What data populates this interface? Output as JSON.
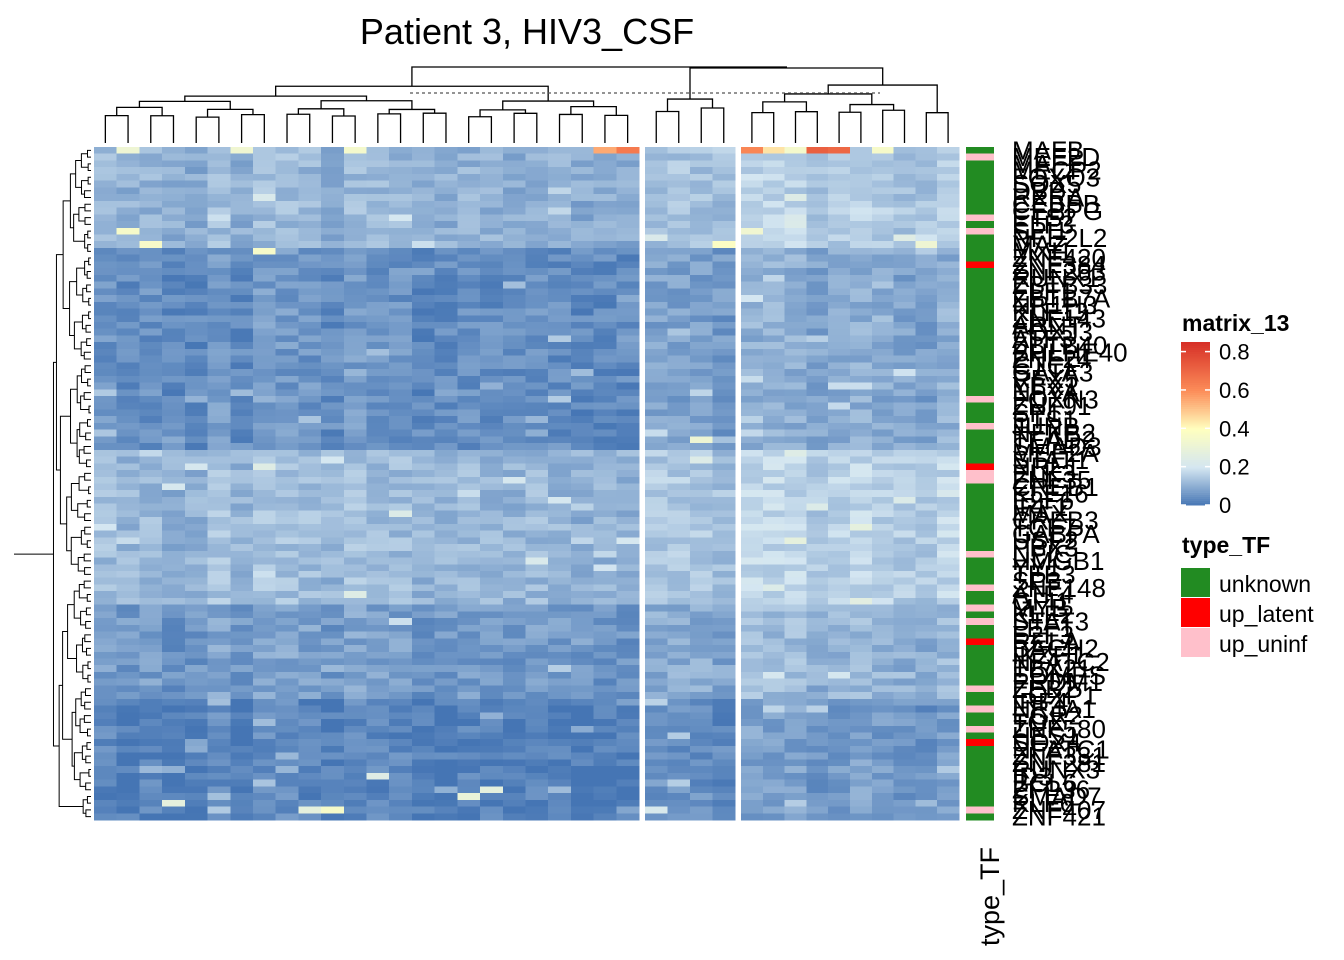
{
  "chart_data": {
    "type": "heatmap",
    "title": "Patient 3, HIV3_CSF",
    "column_splits": [
      24,
      4,
      10
    ],
    "n_rows": 100,
    "colorbar": {
      "title": "matrix_13",
      "ticks": [
        "0.8",
        "0.6",
        "0.4",
        "0.2",
        "0"
      ],
      "tick_values": [
        0.8,
        0.6,
        0.4,
        0.2,
        0
      ],
      "range": [
        0,
        0.85
      ],
      "stops": [
        {
          "v": 0.0,
          "c": "#4575b4"
        },
        {
          "v": 0.2,
          "c": "#d4e6f1"
        },
        {
          "v": 0.4,
          "c": "#ffffbf"
        },
        {
          "v": 0.6,
          "c": "#fc8d59"
        },
        {
          "v": 0.85,
          "c": "#d73027"
        }
      ]
    },
    "annotation": {
      "name": "type_TF",
      "legend_title": "type_TF",
      "categories": [
        {
          "label": "unknown",
          "color": "#228B22"
        },
        {
          "label": "up_latent",
          "color": "#FF0000"
        },
        {
          "label": "up_uninf",
          "color": "#FFC0CB"
        }
      ]
    },
    "row_labels": [
      "MAFB",
      "MEF2D",
      "MAFF",
      "MECP2",
      "FOXO3",
      "SOX5",
      "DBP",
      "RXRA",
      "CEBPB",
      "CEBPG",
      "ETS2",
      "ELF3",
      "SPI1",
      "NFE2L2",
      "MAZ",
      "MXI1",
      "ZNF420",
      "ZNF384",
      "ZNF263",
      "RUNX1",
      "ZBTB33",
      "ELF1",
      "ZBTB7A",
      "NR1H3",
      "KLF13",
      "ZNF143",
      "ARNT",
      "FOXJ3",
      "ATF3",
      "ZBTB40",
      "BHLHE40",
      "ZNF24",
      "CTCF",
      "GATA3",
      "RFX5",
      "YBX1",
      "NFYA",
      "FOXN3",
      "ZNF91",
      "SP1",
      "ETS1",
      "JUNB",
      "NFKB2",
      "TEAD2",
      "SMAD3",
      "MEF2A",
      "STAT1",
      "NRF1",
      "ELK3",
      "ZNF35",
      "CREB1",
      "KLF16",
      "E2F6",
      "IRF1",
      "MAX",
      "CREB3",
      "TCF7",
      "GABPA",
      "USF2",
      "PBX3",
      "NFIC",
      "HMGB1",
      "YY1",
      "TFE3",
      "SP3",
      "ZNF148",
      "ATF4",
      "GFI1",
      "MYB",
      "KLF2",
      "STAT3",
      "LEF1",
      "E2F3",
      "RELA",
      "BACH2",
      "IKZF1",
      "NFATC2",
      "TBX21",
      "EOMES",
      "PRDM1",
      "ZEB2",
      "FOXP1",
      "IRF4",
      "NR4A1",
      "EGR2",
      "TOX",
      "ZNF580",
      "HES1",
      "SOX4",
      "NFATC1",
      "ZNF331",
      "ZNF281",
      "RUNX3",
      "ID3",
      "BCL6",
      "ZFP36",
      "SMAD7",
      "KLF6",
      "ZNF407",
      "ZNF421"
    ],
    "row_types": [
      "unknown",
      "up_uninf",
      "unknown",
      "unknown",
      "unknown",
      "unknown",
      "unknown",
      "unknown",
      "unknown",
      "unknown",
      "up_uninf",
      "unknown",
      "up_uninf",
      "unknown",
      "unknown",
      "unknown",
      "unknown",
      "up_latent",
      "unknown",
      "unknown",
      "unknown",
      "unknown",
      "unknown",
      "unknown",
      "unknown",
      "unknown",
      "unknown",
      "unknown",
      "unknown",
      "unknown",
      "unknown",
      "unknown",
      "unknown",
      "unknown",
      "unknown",
      "unknown",
      "unknown",
      "up_uninf",
      "unknown",
      "unknown",
      "unknown",
      "up_uninf",
      "unknown",
      "unknown",
      "unknown",
      "unknown",
      "unknown",
      "up_latent",
      "up_uninf",
      "up_uninf",
      "unknown",
      "unknown",
      "unknown",
      "unknown",
      "unknown",
      "unknown",
      "unknown",
      "unknown",
      "unknown",
      "unknown",
      "up_uninf",
      "unknown",
      "unknown",
      "unknown",
      "unknown",
      "up_uninf",
      "unknown",
      "unknown",
      "up_uninf",
      "unknown",
      "up_uninf",
      "unknown",
      "unknown",
      "up_latent",
      "unknown",
      "unknown",
      "unknown",
      "unknown",
      "unknown",
      "unknown",
      "up_uninf",
      "unknown",
      "unknown",
      "up_uninf",
      "unknown",
      "unknown",
      "up_uninf",
      "unknown",
      "up_latent",
      "unknown",
      "unknown",
      "unknown",
      "unknown",
      "unknown",
      "unknown",
      "unknown",
      "unknown",
      "unknown",
      "up_uninf",
      "unknown"
    ],
    "hot_cells": [
      {
        "row": 0,
        "col": 23,
        "value": 0.65
      },
      {
        "row": 0,
        "col": 22,
        "value": 0.55
      },
      {
        "row": 0,
        "col": 28,
        "value": 0.62
      },
      {
        "row": 0,
        "col": 29,
        "value": 0.45
      },
      {
        "row": 0,
        "col": 31,
        "value": 0.72
      },
      {
        "row": 0,
        "col": 32,
        "value": 0.7
      },
      {
        "row": 0,
        "col": 30,
        "value": 0.35
      },
      {
        "row": 0,
        "col": 34,
        "value": 0.36
      },
      {
        "row": 0,
        "col": 11,
        "value": 0.35
      },
      {
        "row": 0,
        "col": 6,
        "value": 0.33
      },
      {
        "row": 0,
        "col": 1,
        "value": 0.32
      },
      {
        "row": 12,
        "col": 1,
        "value": 0.36
      },
      {
        "row": 14,
        "col": 2,
        "value": 0.36
      },
      {
        "row": 15,
        "col": 7,
        "value": 0.36
      },
      {
        "row": 14,
        "col": 27,
        "value": 0.38
      },
      {
        "row": 12,
        "col": 28,
        "value": 0.33
      },
      {
        "row": 14,
        "col": 36,
        "value": 0.32
      },
      {
        "row": 43,
        "col": 26,
        "value": 0.32
      },
      {
        "row": 98,
        "col": 10,
        "value": 0.36
      },
      {
        "row": 98,
        "col": 9,
        "value": 0.28
      },
      {
        "row": 98,
        "col": 24,
        "value": 0.22
      },
      {
        "row": 96,
        "col": 16,
        "value": 0.3
      },
      {
        "row": 95,
        "col": 17,
        "value": 0.28
      },
      {
        "row": 97,
        "col": 3,
        "value": 0.28
      },
      {
        "row": 93,
        "col": 12,
        "value": 0.25
      }
    ]
  }
}
